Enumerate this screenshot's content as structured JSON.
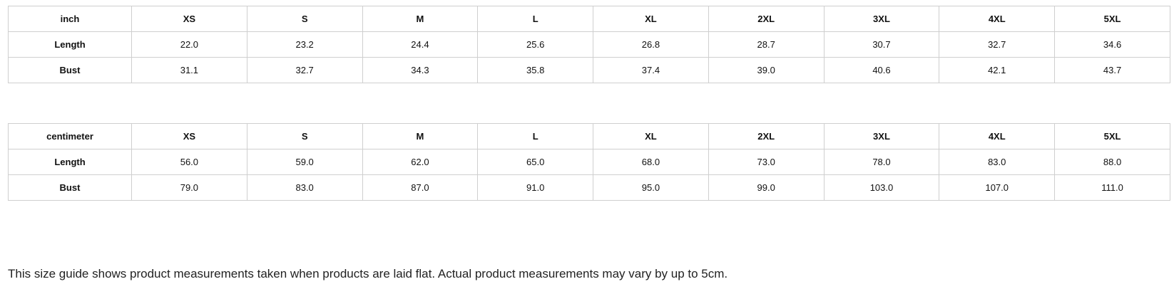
{
  "tables": [
    {
      "unit": "inch",
      "sizes": [
        "XS",
        "S",
        "M",
        "L",
        "XL",
        "2XL",
        "3XL",
        "4XL",
        "5XL"
      ],
      "rows": [
        {
          "label": "Length",
          "values": [
            "22.0",
            "23.2",
            "24.4",
            "25.6",
            "26.8",
            "28.7",
            "30.7",
            "32.7",
            "34.6"
          ]
        },
        {
          "label": "Bust",
          "values": [
            "31.1",
            "32.7",
            "34.3",
            "35.8",
            "37.4",
            "39.0",
            "40.6",
            "42.1",
            "43.7"
          ]
        }
      ]
    },
    {
      "unit": "centimeter",
      "sizes": [
        "XS",
        "S",
        "M",
        "L",
        "XL",
        "2XL",
        "3XL",
        "4XL",
        "5XL"
      ],
      "rows": [
        {
          "label": "Length",
          "values": [
            "56.0",
            "59.0",
            "62.0",
            "65.0",
            "68.0",
            "73.0",
            "78.0",
            "83.0",
            "88.0"
          ]
        },
        {
          "label": "Bust",
          "values": [
            "79.0",
            "83.0",
            "87.0",
            "91.0",
            "95.0",
            "99.0",
            "103.0",
            "107.0",
            "111.0"
          ]
        }
      ]
    }
  ],
  "note": "This size guide shows product measurements taken when products are laid flat. Actual product measurements may vary by up to 5cm."
}
